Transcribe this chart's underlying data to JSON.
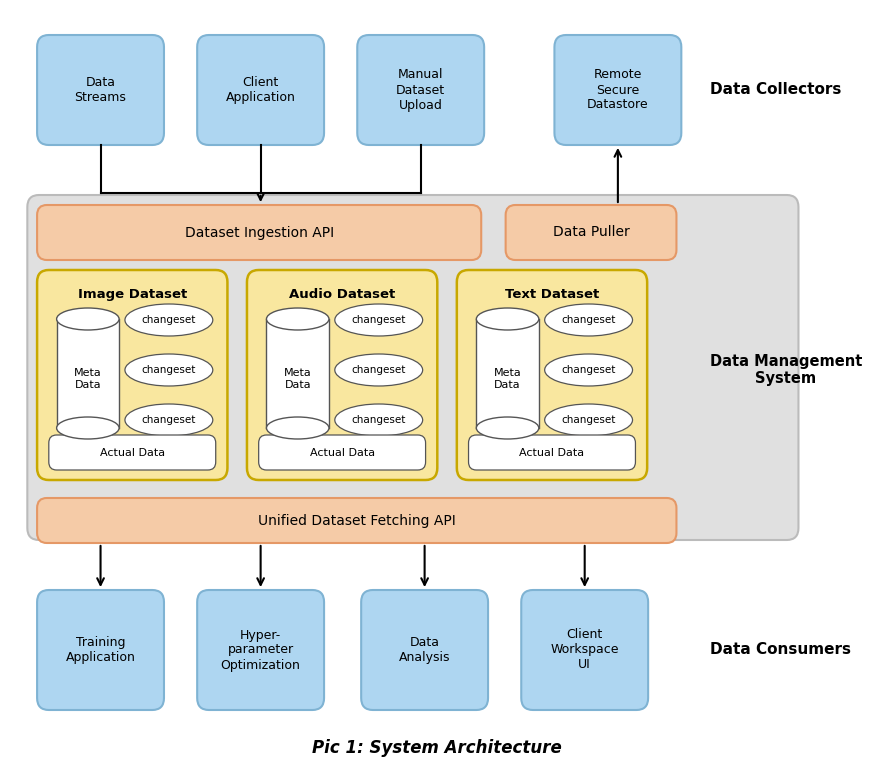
{
  "title": "Pic 1: System Architecture",
  "bg_color": "#ffffff",
  "light_blue_fill": "#aed6f1",
  "light_blue_border": "#7fb3d3",
  "orange_fill": "#f5cba7",
  "orange_border": "#e59866",
  "yellow_fill": "#f9e79f",
  "yellow_border": "#c8a800",
  "gray_fill": "#e0e0e0",
  "gray_border": "#bbbbbb",
  "text_color": "#000000",
  "collectors_label": "Data Collectors",
  "mgmt_label": "Data Management\nSystem",
  "consumers_label": "Data Consumers",
  "ingestion_api": "Dataset Ingestion API",
  "data_puller": "Data Puller",
  "unified_api": "Unified Dataset Fetching API",
  "top_boxes": [
    "Data\nStreams",
    "Client\nApplication",
    "Manual\nDataset\nUpload",
    "Remote\nSecure\nDatastore"
  ],
  "dataset_boxes": [
    "Image Dataset",
    "Audio Dataset",
    "Text Dataset"
  ],
  "bottom_boxes": [
    "Training\nApplication",
    "Hyper-\nparameter\nOptimization",
    "Data\nAnalysis",
    "Client\nWorkspace\nUI"
  ]
}
